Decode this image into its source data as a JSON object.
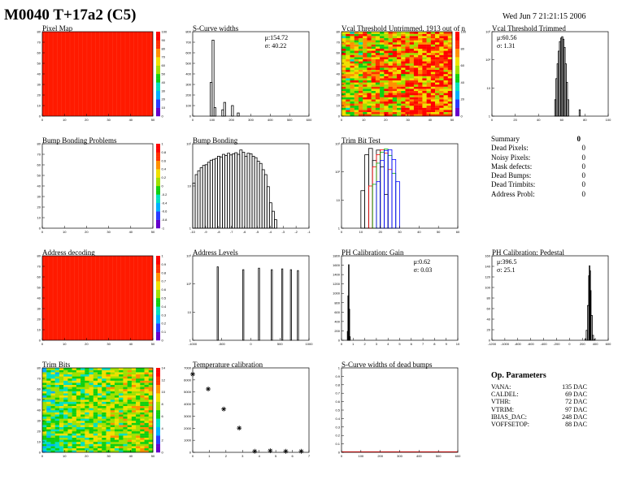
{
  "header": {
    "title": "M0040 T+17a2 (C5)",
    "timestamp": "Wed Jun  7 21:21:15 2006"
  },
  "colors": {
    "hist_line": "#000000",
    "map_red": "#ff1a00",
    "palette": [
      "#6600cc",
      "#2a3cff",
      "#00b0ff",
      "#00e0c0",
      "#10d010",
      "#a0e000",
      "#f0e000",
      "#ff9000",
      "#ff3000",
      "#ff0000"
    ]
  },
  "summary": {
    "title": "Summary",
    "total": "0",
    "rows": [
      {
        "label": "Dead Pixels:",
        "value": "0"
      },
      {
        "label": "Noisy Pixels:",
        "value": "0"
      },
      {
        "label": "Mask defects:",
        "value": "0"
      },
      {
        "label": "Dead Bumps:",
        "value": "0"
      },
      {
        "label": "Dead Trimbits:",
        "value": "0"
      },
      {
        "label": "Address Probl:",
        "value": "0"
      }
    ]
  },
  "op_params": {
    "title": "Op. Parameters",
    "rows": [
      {
        "label": "VANA:",
        "value": "135 DAC"
      },
      {
        "label": "CALDEL:",
        "value": "69 DAC"
      },
      {
        "label": "VTHR:",
        "value": "72 DAC"
      },
      {
        "label": "VTRIM:",
        "value": "97 DAC"
      },
      {
        "label": "IBIAS_DAC:",
        "value": "248 DAC"
      },
      {
        "label": "VOFFSETOP:",
        "value": "88 DAC"
      }
    ]
  },
  "chart_data": [
    {
      "id": "pixel-map",
      "title": "Pixel Map",
      "type": "heatmap",
      "x_ticks": [
        "0",
        "10",
        "20",
        "30",
        "40",
        "50"
      ],
      "y_ticks": [
        "0",
        "10",
        "20",
        "30",
        "40",
        "50",
        "60",
        "70",
        "80"
      ],
      "z_ticks": [
        "0",
        "10",
        "20",
        "30",
        "40",
        "50",
        "60",
        "70",
        "80",
        "90",
        "100"
      ],
      "xlim": [
        0,
        52
      ],
      "ylim": [
        0,
        80
      ],
      "zlim": [
        0,
        100
      ],
      "fill": "uniform_max"
    },
    {
      "id": "scurve-widths",
      "title": "S-Curve widths",
      "type": "bar",
      "x_ticks": [
        "0",
        "100",
        "200",
        "300",
        "400",
        "500",
        "600"
      ],
      "y_ticks": [
        "0",
        "100",
        "200",
        "300",
        "400",
        "500",
        "600",
        "700",
        "800"
      ],
      "xlim": [
        0,
        600
      ],
      "ylim": [
        0,
        800
      ],
      "log": false,
      "stats": [
        "μ:154.72",
        "σ: 40.22"
      ],
      "bins": [
        [
          90,
          100,
          320
        ],
        [
          100,
          110,
          720
        ],
        [
          110,
          120,
          80
        ],
        [
          150,
          160,
          60
        ],
        [
          160,
          170,
          130
        ],
        [
          200,
          210,
          100
        ],
        [
          230,
          240,
          30
        ]
      ]
    },
    {
      "id": "vcal-untrimmed",
      "title": "Vcal Threshold Untrimmed, 1913 out of n",
      "type": "heatmap",
      "x_ticks": [
        "0",
        "10",
        "20",
        "30",
        "40",
        "50"
      ],
      "y_ticks": [
        "0",
        "10",
        "20",
        "30",
        "40",
        "50",
        "60",
        "70",
        "80"
      ],
      "z_ticks": [
        "0",
        "20",
        "40",
        "60",
        "80",
        "100"
      ],
      "xlim": [
        0,
        52
      ],
      "ylim": [
        0,
        80
      ],
      "zlim": [
        0,
        100
      ],
      "fill": "noisy_orange_yellow"
    },
    {
      "id": "vcal-trimmed",
      "title": "Vcal Threshold Trimmed",
      "type": "bar",
      "x_ticks": [
        "0",
        "20",
        "40",
        "60",
        "80",
        "100"
      ],
      "y_ticks": [
        "1",
        "10",
        "10²",
        "10³"
      ],
      "xlim": [
        0,
        100
      ],
      "ylim": [
        0.5,
        5000
      ],
      "log": true,
      "stats": [
        "μ:60.56",
        "σ: 1.31"
      ],
      "bins": [
        [
          54,
          55,
          3
        ],
        [
          55,
          56,
          30
        ],
        [
          56,
          57,
          150
        ],
        [
          57,
          58,
          600
        ],
        [
          58,
          59,
          1700
        ],
        [
          59,
          60,
          2500
        ],
        [
          60,
          61,
          2900
        ],
        [
          61,
          62,
          2200
        ],
        [
          62,
          63,
          900
        ],
        [
          63,
          64,
          150
        ],
        [
          64,
          65,
          20
        ],
        [
          65,
          66,
          3
        ],
        [
          75,
          76,
          1
        ]
      ]
    },
    {
      "id": "bump-bonding-problems",
      "title": "Bump Bonding Problems",
      "type": "heatmap",
      "x_ticks": [
        "0",
        "10",
        "20",
        "30",
        "40",
        "50"
      ],
      "y_ticks": [
        "0",
        "10",
        "20",
        "30",
        "40",
        "50",
        "60",
        "70",
        "80"
      ],
      "z_ticks": [
        "-1",
        "-0.8",
        "-0.6",
        "-0.4",
        "-0.2",
        "0",
        "0.2",
        "0.4",
        "0.6",
        "0.8",
        "1"
      ],
      "xlim": [
        0,
        52
      ],
      "ylim": [
        0,
        80
      ],
      "zlim": [
        -1,
        1
      ],
      "fill": "empty"
    },
    {
      "id": "bump-bonding",
      "title": "Bump Bonding",
      "type": "bar",
      "x_ticks": [
        "-10",
        "-9",
        "-8",
        "-7",
        "-6",
        "-5",
        "-4",
        "-3",
        "-2",
        "-1"
      ],
      "y_ticks": [
        "1",
        "10",
        "10²"
      ],
      "xlim": [
        -10.2,
        -0.8
      ],
      "ylim": [
        0.5,
        500
      ],
      "log": true,
      "bins": [
        [
          -10.2,
          -10,
          20
        ],
        [
          -10,
          -9.8,
          40
        ],
        [
          -9.8,
          -9.6,
          55
        ],
        [
          -9.6,
          -9.4,
          70
        ],
        [
          -9.4,
          -9.2,
          85
        ],
        [
          -9.2,
          -9,
          90
        ],
        [
          -9,
          -8.8,
          110
        ],
        [
          -8.8,
          -8.6,
          130
        ],
        [
          -8.6,
          -8.4,
          140
        ],
        [
          -8.4,
          -8.2,
          150
        ],
        [
          -8.2,
          -8,
          180
        ],
        [
          -8,
          -7.8,
          170
        ],
        [
          -7.8,
          -7.6,
          210
        ],
        [
          -7.6,
          -7.4,
          190
        ],
        [
          -7.4,
          -7.2,
          230
        ],
        [
          -7.2,
          -7,
          200
        ],
        [
          -7,
          -6.8,
          220
        ],
        [
          -6.8,
          -6.6,
          240
        ],
        [
          -6.6,
          -6.4,
          210
        ],
        [
          -6.4,
          -6.2,
          300
        ],
        [
          -6.2,
          -6,
          250
        ],
        [
          -6,
          -5.8,
          180
        ],
        [
          -5.8,
          -5.6,
          230
        ],
        [
          -5.6,
          -5.4,
          220
        ],
        [
          -5.4,
          -5.2,
          180
        ],
        [
          -5.2,
          -5,
          160
        ],
        [
          -5,
          -4.8,
          120
        ],
        [
          -4.8,
          -4.6,
          100
        ],
        [
          -4.6,
          -4.4,
          60
        ],
        [
          -4.4,
          -4.2,
          40
        ],
        [
          -4.2,
          -4,
          15
        ],
        [
          -4,
          -3.8,
          4
        ],
        [
          -3.8,
          -3.6,
          2
        ],
        [
          -3.6,
          -3.4,
          1
        ]
      ]
    },
    {
      "id": "trim-bit-test",
      "title": "Trim Bit Test",
      "type": "bar",
      "x_ticks": [
        "0",
        "10",
        "20",
        "30",
        "40",
        "50",
        "60"
      ],
      "y_ticks": [
        "1",
        "10",
        "10²",
        "10³"
      ],
      "xlim": [
        0,
        60
      ],
      "ylim": [
        0.5,
        5000
      ],
      "log": true,
      "series": [
        {
          "color": "#000000",
          "bins": [
            [
              10,
              12,
              30
            ],
            [
              12,
              14,
              1500
            ],
            [
              14,
              16,
              3000
            ],
            [
              16,
              18,
              800
            ],
            [
              18,
              20,
              2500
            ],
            [
              20,
              22,
              400
            ],
            [
              22,
              24,
              20
            ]
          ]
        },
        {
          "color": "#ff0000",
          "bins": [
            [
              14,
              16,
              50
            ],
            [
              16,
              18,
              400
            ],
            [
              18,
              20,
              1500
            ],
            [
              20,
              22,
              2600
            ],
            [
              22,
              24,
              1800
            ],
            [
              24,
              26,
              300
            ]
          ]
        },
        {
          "color": "#00aa00",
          "bins": [
            [
              16,
              18,
              60
            ],
            [
              18,
              20,
              600
            ],
            [
              20,
              22,
              2000
            ],
            [
              22,
              24,
              2800
            ],
            [
              24,
              26,
              1400
            ],
            [
              26,
              28,
              200
            ]
          ]
        },
        {
          "color": "#0000ff",
          "bins": [
            [
              18,
              20,
              80
            ],
            [
              20,
              22,
              800
            ],
            [
              22,
              24,
              2400
            ],
            [
              24,
              26,
              2600
            ],
            [
              26,
              28,
              900
            ],
            [
              28,
              30,
              80
            ]
          ]
        }
      ]
    },
    {
      "id": "address-decoding",
      "title": "Address decoding",
      "type": "heatmap",
      "x_ticks": [
        "0",
        "10",
        "20",
        "30",
        "40",
        "50"
      ],
      "y_ticks": [
        "0",
        "10",
        "20",
        "30",
        "40",
        "50",
        "60",
        "70",
        "80"
      ],
      "z_ticks": [
        "0",
        "0.1",
        "0.2",
        "0.3",
        "0.4",
        "0.5",
        "0.6",
        "0.7",
        "0.8",
        "0.9",
        "1"
      ],
      "xlim": [
        0,
        52
      ],
      "ylim": [
        0,
        80
      ],
      "zlim": [
        0,
        1
      ],
      "fill": "uniform_max"
    },
    {
      "id": "address-levels",
      "title": "Address Levels",
      "type": "bar",
      "x_ticks": [
        "-1000",
        "-500",
        "0",
        "500",
        "1000"
      ],
      "y_ticks": [
        "1",
        "10",
        "10²",
        "10³"
      ],
      "xlim": [
        -1000,
        1000
      ],
      "ylim": [
        0.5,
        5000
      ],
      "log": true,
      "bins": [
        [
          -580,
          -560,
          1500
        ],
        [
          -140,
          -120,
          1100
        ],
        [
          130,
          150,
          1300
        ],
        [
          350,
          370,
          1100
        ],
        [
          530,
          550,
          1200
        ],
        [
          680,
          700,
          1100
        ],
        [
          800,
          820,
          1000
        ]
      ]
    },
    {
      "id": "ph-gain",
      "title": "PH Calibration: Gain",
      "type": "bar",
      "x_ticks": [
        "0",
        "1",
        "2",
        "3",
        "4",
        "5",
        "6",
        "7",
        "8",
        "9",
        "10"
      ],
      "y_ticks": [
        "0",
        "200",
        "400",
        "600",
        "800",
        "1000",
        "1200",
        "1400",
        "1600",
        "1800"
      ],
      "xlim": [
        0,
        10
      ],
      "ylim": [
        0,
        1900
      ],
      "log": false,
      "stats": [
        "μ:0.62",
        "σ: 0.03"
      ],
      "bins": [
        [
          0.5,
          0.55,
          200
        ],
        [
          0.55,
          0.6,
          1000
        ],
        [
          0.6,
          0.65,
          1700
        ],
        [
          0.65,
          0.7,
          700
        ],
        [
          0.7,
          0.75,
          80
        ]
      ]
    },
    {
      "id": "ph-pedestal",
      "title": "PH Calibration: Pedestal",
      "type": "bar",
      "x_ticks": [
        "-1200",
        "-1000",
        "-800",
        "-600",
        "-400",
        "-200",
        "0",
        "200",
        "400",
        "600"
      ],
      "y_ticks": [
        "0",
        "20",
        "40",
        "60",
        "80",
        "100",
        "120",
        "140",
        "160"
      ],
      "xlim": [
        -1200,
        700
      ],
      "ylim": [
        0,
        170
      ],
      "log": false,
      "stats": [
        "μ:396.5",
        "σ: 25.1"
      ],
      "bins": [
        [
          320,
          340,
          3
        ],
        [
          340,
          360,
          20
        ],
        [
          360,
          380,
          70
        ],
        [
          380,
          390,
          130
        ],
        [
          390,
          400,
          150
        ],
        [
          400,
          410,
          140
        ],
        [
          410,
          420,
          100
        ],
        [
          420,
          440,
          50
        ],
        [
          440,
          460,
          10
        ],
        [
          460,
          480,
          2
        ]
      ]
    },
    {
      "id": "trim-bits",
      "title": "Trim Bits",
      "type": "heatmap",
      "x_ticks": [
        "0",
        "10",
        "20",
        "30",
        "40",
        "50"
      ],
      "y_ticks": [
        "0",
        "10",
        "20",
        "30",
        "40",
        "50",
        "60",
        "70",
        "80"
      ],
      "z_ticks": [
        "0",
        "2",
        "4",
        "6",
        "8",
        "10",
        "12",
        "14"
      ],
      "xlim": [
        0,
        52
      ],
      "ylim": [
        0,
        80
      ],
      "zlim": [
        0,
        14
      ],
      "fill": "noisy_green"
    },
    {
      "id": "temperature-calibration",
      "title": "Temperature calibration",
      "type": "scatter",
      "x_ticks": [
        "0",
        "1",
        "2",
        "3",
        "4",
        "5",
        "6",
        "7"
      ],
      "y_ticks": [
        "0",
        "1000",
        "2000",
        "3000",
        "4000",
        "5000",
        "6000",
        "7000"
      ],
      "xlim": [
        0,
        7.5
      ],
      "ylim": [
        0,
        8000
      ],
      "log": false,
      "points": [
        [
          0,
          7400
        ],
        [
          1,
          6000
        ],
        [
          2,
          4100
        ],
        [
          3,
          2300
        ],
        [
          4,
          100
        ],
        [
          5,
          150
        ],
        [
          6,
          100
        ],
        [
          7,
          100
        ]
      ]
    },
    {
      "id": "scurve-dead-bumps",
      "title": "S-Curve widths of dead bumps",
      "type": "bar",
      "x_ticks": [
        "0",
        "100",
        "200",
        "300",
        "400",
        "500",
        "600"
      ],
      "y_ticks": [
        "0",
        "0.1",
        "0.2",
        "0.3",
        "0.4",
        "0.5",
        "0.6",
        "0.7",
        "0.8",
        "0.9",
        "1"
      ],
      "xlim": [
        0,
        600
      ],
      "ylim": [
        0,
        1
      ],
      "log": false,
      "bins": [],
      "baseline_color": "#ff0000"
    }
  ]
}
